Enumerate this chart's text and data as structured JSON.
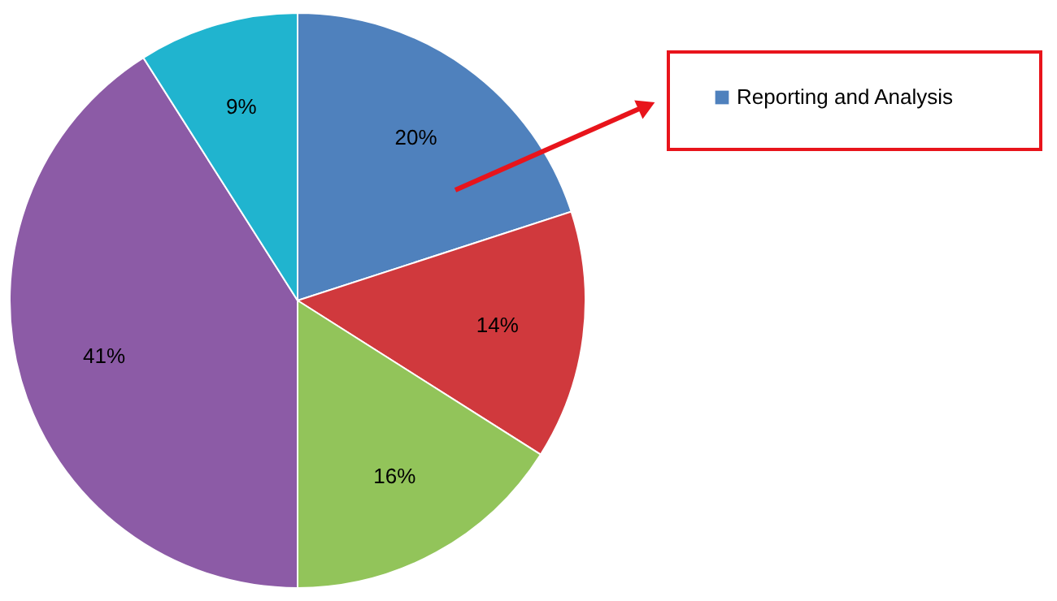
{
  "chart_data": {
    "type": "pie",
    "categories": [
      "Reporting and Analysis",
      null,
      null,
      null,
      null
    ],
    "values": [
      20,
      14,
      16,
      41,
      9
    ],
    "value_labels": [
      "20%",
      "14%",
      "16%",
      "41%",
      "9%"
    ],
    "colors": [
      "#4f81bd",
      "#d0393d",
      "#92c45a",
      "#8c5ba6",
      "#20b4cf"
    ],
    "legend": "top right"
  }
}
